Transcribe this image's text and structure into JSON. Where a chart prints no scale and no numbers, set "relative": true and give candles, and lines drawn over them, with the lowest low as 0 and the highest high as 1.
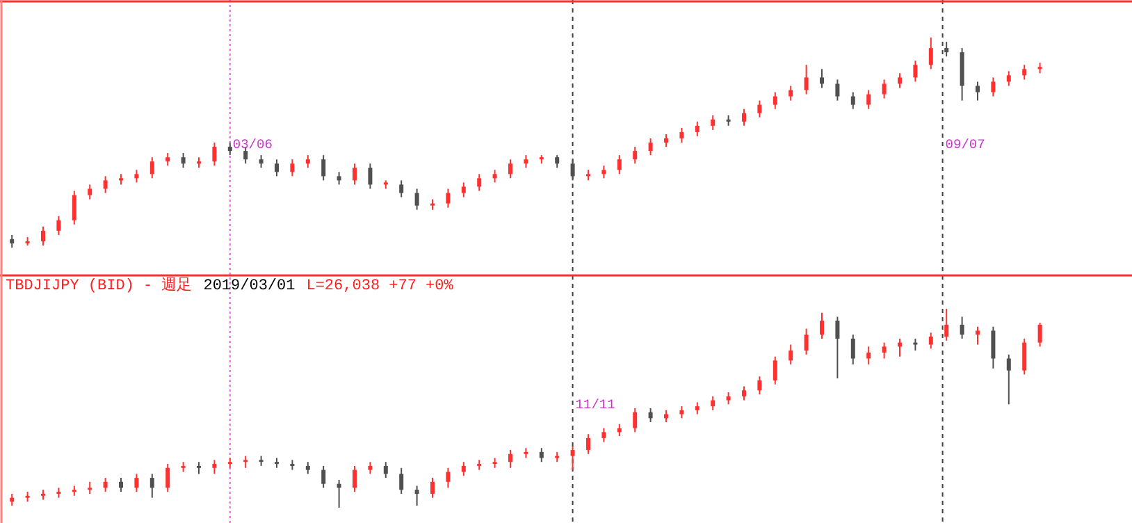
{
  "chart_data": [
    {
      "type": "candlestick",
      "relative": true,
      "annotations": [
        "03/06",
        "09/07"
      ],
      "categories": [
        null,
        null,
        null,
        null,
        null,
        null,
        null,
        null,
        null,
        null,
        null,
        null,
        null,
        null,
        null,
        null,
        null,
        null,
        null,
        null,
        null,
        null,
        null,
        null,
        null,
        null,
        null,
        null,
        null,
        null,
        null,
        null,
        null,
        null,
        null,
        null,
        null,
        null,
        null,
        null,
        null,
        null,
        null,
        null,
        null,
        null,
        null,
        null,
        null,
        null,
        null,
        null,
        null,
        null,
        null,
        null,
        null,
        null,
        null,
        null,
        null,
        null,
        null,
        null,
        null,
        null,
        null
      ],
      "ohlc": [
        [
          0.04,
          0.06,
          0,
          0.02
        ],
        [
          0.02,
          0.05,
          0.01,
          0.03
        ],
        [
          0.03,
          0.1,
          0.01,
          0.08
        ],
        [
          0.08,
          0.15,
          0.06,
          0.13
        ],
        [
          0.13,
          0.27,
          0.11,
          0.25
        ],
        [
          0.25,
          0.3,
          0.23,
          0.28
        ],
        [
          0.28,
          0.34,
          0.26,
          0.32
        ],
        [
          0.32,
          0.35,
          0.3,
          0.33
        ],
        [
          0.33,
          0.37,
          0.31,
          0.35
        ],
        [
          0.35,
          0.43,
          0.33,
          0.41
        ],
        [
          0.41,
          0.45,
          0.39,
          0.43
        ],
        [
          0.43,
          0.45,
          0.38,
          0.4
        ],
        [
          0.4,
          0.43,
          0.38,
          0.41
        ],
        [
          0.41,
          0.5,
          0.39,
          0.48
        ],
        [
          0.48,
          0.5,
          0.44,
          0.46
        ],
        [
          0.46,
          0.48,
          0.4,
          0.42
        ],
        [
          0.42,
          0.44,
          0.38,
          0.4
        ],
        [
          0.4,
          0.42,
          0.34,
          0.36
        ],
        [
          0.36,
          0.42,
          0.34,
          0.4
        ],
        [
          0.4,
          0.44,
          0.38,
          0.42
        ],
        [
          0.42,
          0.44,
          0.32,
          0.34
        ],
        [
          0.34,
          0.36,
          0.3,
          0.32
        ],
        [
          0.32,
          0.4,
          0.3,
          0.38
        ],
        [
          0.38,
          0.4,
          0.28,
          0.3
        ],
        [
          0.3,
          0.32,
          0.28,
          0.31
        ],
        [
          0.3,
          0.32,
          0.24,
          0.26
        ],
        [
          0.26,
          0.28,
          0.18,
          0.2
        ],
        [
          0.2,
          0.23,
          0.18,
          0.21
        ],
        [
          0.21,
          0.28,
          0.19,
          0.26
        ],
        [
          0.26,
          0.31,
          0.24,
          0.29
        ],
        [
          0.29,
          0.35,
          0.27,
          0.33
        ],
        [
          0.33,
          0.37,
          0.31,
          0.35
        ],
        [
          0.35,
          0.42,
          0.33,
          0.4
        ],
        [
          0.4,
          0.44,
          0.38,
          0.42
        ],
        [
          0.42,
          0.44,
          0.4,
          0.43
        ],
        [
          0.43,
          0.44,
          0.38,
          0.4
        ],
        [
          0.4,
          0.42,
          0.32,
          0.34
        ],
        [
          0.34,
          0.37,
          0.32,
          0.35
        ],
        [
          0.35,
          0.39,
          0.33,
          0.37
        ],
        [
          0.37,
          0.44,
          0.35,
          0.42
        ],
        [
          0.42,
          0.48,
          0.4,
          0.46
        ],
        [
          0.46,
          0.52,
          0.44,
          0.5
        ],
        [
          0.5,
          0.54,
          0.48,
          0.52
        ],
        [
          0.52,
          0.57,
          0.5,
          0.55
        ],
        [
          0.55,
          0.6,
          0.53,
          0.58
        ],
        [
          0.58,
          0.63,
          0.56,
          0.61
        ],
        [
          0.61,
          0.63,
          0.58,
          0.6
        ],
        [
          0.6,
          0.66,
          0.58,
          0.64
        ],
        [
          0.64,
          0.7,
          0.62,
          0.68
        ],
        [
          0.68,
          0.74,
          0.66,
          0.72
        ],
        [
          0.72,
          0.77,
          0.7,
          0.75
        ],
        [
          0.75,
          0.87,
          0.73,
          0.81
        ],
        [
          0.81,
          0.85,
          0.76,
          0.78
        ],
        [
          0.78,
          0.8,
          0.7,
          0.72
        ],
        [
          0.72,
          0.74,
          0.66,
          0.68
        ],
        [
          0.68,
          0.75,
          0.66,
          0.73
        ],
        [
          0.73,
          0.8,
          0.71,
          0.78
        ],
        [
          0.78,
          0.83,
          0.76,
          0.81
        ],
        [
          0.81,
          0.89,
          0.79,
          0.87
        ],
        [
          0.87,
          1,
          0.85,
          0.95
        ],
        [
          0.95,
          0.98,
          0.91,
          0.93
        ],
        [
          0.93,
          0.95,
          0.7,
          0.77
        ],
        [
          0.77,
          0.79,
          0.7,
          0.74
        ],
        [
          0.74,
          0.81,
          0.72,
          0.79
        ],
        [
          0.79,
          0.84,
          0.77,
          0.82
        ],
        [
          0.82,
          0.87,
          0.8,
          0.85
        ],
        [
          0.85,
          0.88,
          0.83,
          0.86
        ]
      ]
    },
    {
      "type": "candlestick",
      "relative": true,
      "title": "TBDJIJPY (BID) - 週足",
      "subtitle": "2019/03/01",
      "annotations": [
        "L=26,038 +77 +0%",
        "11/11"
      ],
      "categories": [
        null,
        null,
        null,
        null,
        null,
        null,
        null,
        null,
        null,
        null,
        null,
        null,
        null,
        null,
        null,
        null,
        null,
        null,
        null,
        null,
        null,
        null,
        null,
        null,
        null,
        null,
        null,
        null,
        null,
        null,
        null,
        null,
        null,
        null,
        null,
        null,
        null,
        null,
        null,
        null,
        null,
        null,
        null,
        null,
        null,
        null,
        null,
        null,
        null,
        null,
        null,
        null,
        null,
        null,
        null,
        null,
        null,
        null,
        null,
        null,
        null,
        null,
        null,
        null,
        null,
        null,
        null
      ],
      "ohlc": [
        [
          0.03,
          0.07,
          0.01,
          0.05
        ],
        [
          0.05,
          0.08,
          0.03,
          0.06
        ],
        [
          0.06,
          0.09,
          0.04,
          0.07
        ],
        [
          0.07,
          0.1,
          0.05,
          0.08
        ],
        [
          0.08,
          0.11,
          0.06,
          0.09
        ],
        [
          0.09,
          0.13,
          0.07,
          0.1
        ],
        [
          0.1,
          0.15,
          0.08,
          0.13
        ],
        [
          0.13,
          0.15,
          0.08,
          0.1
        ],
        [
          0.1,
          0.17,
          0.08,
          0.15
        ],
        [
          0.15,
          0.17,
          0.05,
          0.1
        ],
        [
          0.1,
          0.22,
          0.08,
          0.2
        ],
        [
          0.2,
          0.23,
          0.18,
          0.21
        ],
        [
          0.21,
          0.23,
          0.17,
          0.2
        ],
        [
          0.2,
          0.24,
          0.17,
          0.22
        ],
        [
          0.22,
          0.25,
          0.2,
          0.23
        ],
        [
          0.23,
          0.26,
          0.2,
          0.24
        ],
        [
          0.24,
          0.26,
          0.21,
          0.23
        ],
        [
          0.23,
          0.25,
          0.2,
          0.22
        ],
        [
          0.22,
          0.24,
          0.19,
          0.21
        ],
        [
          0.21,
          0.23,
          0.17,
          0.19
        ],
        [
          0.19,
          0.21,
          0.1,
          0.12
        ],
        [
          0.12,
          0.14,
          0,
          0.1
        ],
        [
          0.1,
          0.21,
          0.08,
          0.19
        ],
        [
          0.19,
          0.23,
          0.17,
          0.21
        ],
        [
          0.21,
          0.23,
          0.15,
          0.17
        ],
        [
          0.17,
          0.2,
          0.07,
          0.09
        ],
        [
          0.09,
          0.11,
          0.01,
          0.07
        ],
        [
          0.07,
          0.15,
          0.05,
          0.13
        ],
        [
          0.13,
          0.2,
          0.1,
          0.18
        ],
        [
          0.18,
          0.23,
          0.16,
          0.21
        ],
        [
          0.21,
          0.24,
          0.19,
          0.22
        ],
        [
          0.22,
          0.25,
          0.2,
          0.23
        ],
        [
          0.23,
          0.29,
          0.2,
          0.27
        ],
        [
          0.27,
          0.3,
          0.25,
          0.28
        ],
        [
          0.28,
          0.3,
          0.23,
          0.25
        ],
        [
          0.25,
          0.28,
          0.23,
          0.26
        ],
        [
          0.26,
          0.31,
          0.19,
          0.29
        ],
        [
          0.29,
          0.37,
          0.27,
          0.35
        ],
        [
          0.35,
          0.4,
          0.33,
          0.38
        ],
        [
          0.38,
          0.42,
          0.36,
          0.4
        ],
        [
          0.4,
          0.5,
          0.38,
          0.48
        ],
        [
          0.48,
          0.5,
          0.43,
          0.45
        ],
        [
          0.45,
          0.49,
          0.43,
          0.47
        ],
        [
          0.47,
          0.51,
          0.45,
          0.49
        ],
        [
          0.49,
          0.53,
          0.47,
          0.51
        ],
        [
          0.51,
          0.56,
          0.49,
          0.54
        ],
        [
          0.54,
          0.58,
          0.52,
          0.56
        ],
        [
          0.56,
          0.61,
          0.54,
          0.59
        ],
        [
          0.59,
          0.66,
          0.57,
          0.64
        ],
        [
          0.64,
          0.76,
          0.62,
          0.74
        ],
        [
          0.74,
          0.82,
          0.72,
          0.79
        ],
        [
          0.79,
          0.9,
          0.77,
          0.87
        ],
        [
          0.87,
          0.98,
          0.85,
          0.94
        ],
        [
          0.94,
          0.96,
          0.65,
          0.85
        ],
        [
          0.85,
          0.87,
          0.72,
          0.75
        ],
        [
          0.75,
          0.81,
          0.72,
          0.78
        ],
        [
          0.78,
          0.83,
          0.75,
          0.81
        ],
        [
          0.81,
          0.85,
          0.76,
          0.83
        ],
        [
          0.83,
          0.85,
          0.79,
          0.82
        ],
        [
          0.82,
          0.88,
          0.8,
          0.86
        ],
        [
          0.86,
          1,
          0.84,
          0.92
        ],
        [
          0.92,
          0.96,
          0.85,
          0.87
        ],
        [
          0.87,
          0.91,
          0.82,
          0.89
        ],
        [
          0.89,
          0.91,
          0.7,
          0.75
        ],
        [
          0.75,
          0.77,
          0.52,
          0.69
        ],
        [
          0.69,
          0.85,
          0.67,
          0.83
        ],
        [
          0.83,
          0.93,
          0.81,
          0.92
        ]
      ]
    }
  ]
}
